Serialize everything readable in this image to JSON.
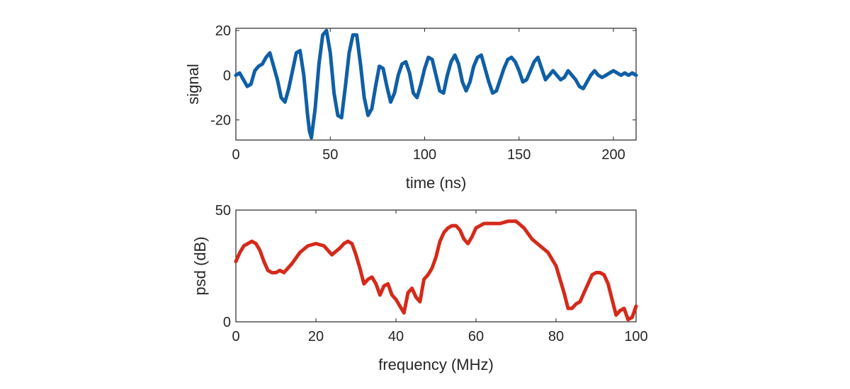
{
  "chart_data": [
    {
      "type": "line",
      "xlabel": "time (ns)",
      "ylabel": "signal",
      "xlim": [
        0,
        212
      ],
      "ylim": [
        -29,
        21
      ],
      "xticks": [
        0,
        50,
        100,
        150,
        200
      ],
      "yticks": [
        -20,
        0,
        20
      ],
      "grid": false,
      "series": [
        {
          "color": "#0f5fa6",
          "x": [
            0,
            2,
            4,
            6,
            8,
            10,
            12,
            14,
            16,
            18,
            20,
            22,
            24,
            26,
            28,
            30,
            32,
            34,
            36,
            38,
            39,
            40,
            42,
            44,
            46,
            48,
            50,
            52,
            54,
            56,
            58,
            60,
            62,
            64,
            66,
            68,
            70,
            72,
            74,
            76,
            78,
            80,
            82,
            84,
            86,
            88,
            90,
            92,
            94,
            96,
            98,
            100,
            102,
            104,
            106,
            108,
            110,
            112,
            114,
            116,
            118,
            120,
            122,
            124,
            126,
            128,
            130,
            132,
            134,
            136,
            138,
            140,
            142,
            144,
            146,
            148,
            150,
            152,
            154,
            156,
            158,
            160,
            162,
            164,
            166,
            168,
            170,
            172,
            174,
            176,
            178,
            180,
            182,
            184,
            186,
            188,
            190,
            192,
            194,
            196,
            198,
            200,
            202,
            204,
            206,
            208,
            210,
            212
          ],
          "y": [
            0,
            1,
            -2,
            -5,
            -4,
            2,
            4,
            5,
            8,
            10,
            4,
            -2,
            -10,
            -12,
            -6,
            2,
            10,
            11,
            0,
            -18,
            -25,
            -28,
            -15,
            5,
            18,
            20,
            10,
            -8,
            -18,
            -19,
            -5,
            10,
            18,
            18,
            5,
            -10,
            -18,
            -15,
            -5,
            4,
            3,
            -5,
            -12,
            -8,
            0,
            5,
            6,
            1,
            -8,
            -10,
            -4,
            3,
            8,
            7,
            0,
            -7,
            -8,
            0,
            6,
            9,
            5,
            -3,
            -7,
            -3,
            4,
            8,
            9,
            3,
            -3,
            -8,
            -7,
            -2,
            3,
            7,
            8,
            6,
            2,
            -3,
            -2,
            2,
            6,
            8,
            3,
            -2,
            0,
            2,
            0,
            -2,
            -1,
            2,
            0,
            -2,
            -5,
            -6,
            -3,
            0,
            2,
            0,
            -1,
            0,
            1,
            2,
            1,
            0,
            1,
            0,
            1,
            0
          ]
        }
      ]
    },
    {
      "type": "line",
      "xlabel": "frequency (MHz)",
      "ylabel": "psd (dB)",
      "xlim": [
        0,
        100
      ],
      "ylim": [
        0,
        50
      ],
      "xticks": [
        0,
        20,
        40,
        60,
        80,
        100
      ],
      "yticks": [
        0,
        50
      ],
      "grid": false,
      "series": [
        {
          "color": "#d42a1a",
          "x": [
            0,
            1,
            2,
            3,
            4,
            5,
            6,
            7,
            8,
            9,
            10,
            11,
            12,
            14,
            16,
            18,
            20,
            22,
            23,
            24,
            26,
            27,
            28,
            29,
            30,
            31,
            32,
            33,
            34,
            35,
            36,
            37,
            38,
            39,
            40,
            41,
            42,
            43,
            44,
            45,
            46,
            47,
            48,
            49,
            50,
            51,
            52,
            53,
            54,
            55,
            56,
            57,
            58,
            59,
            60,
            62,
            64,
            66,
            68,
            70,
            72,
            74,
            76,
            78,
            80,
            82,
            83,
            84,
            85,
            86,
            87,
            88,
            89,
            90,
            91,
            92,
            93,
            94,
            95,
            96,
            97,
            98,
            99,
            100
          ],
          "y": [
            27,
            31,
            34,
            35,
            36,
            35,
            32,
            27,
            23,
            22,
            22,
            23,
            22,
            26,
            31,
            34,
            35,
            34,
            32,
            30,
            33,
            35,
            36,
            35,
            30,
            24,
            17,
            19,
            20,
            17,
            12,
            16,
            17,
            12,
            10,
            7,
            4,
            13,
            15,
            11,
            9,
            19,
            21,
            24,
            29,
            36,
            40,
            42,
            43,
            43,
            41,
            37,
            35,
            38,
            42,
            44,
            44,
            44,
            45,
            45,
            42,
            37,
            34,
            31,
            25,
            13,
            6,
            6,
            8,
            9,
            13,
            17,
            21,
            22,
            22,
            21,
            17,
            10,
            3,
            5,
            6,
            1,
            2,
            7
          ]
        }
      ]
    }
  ]
}
